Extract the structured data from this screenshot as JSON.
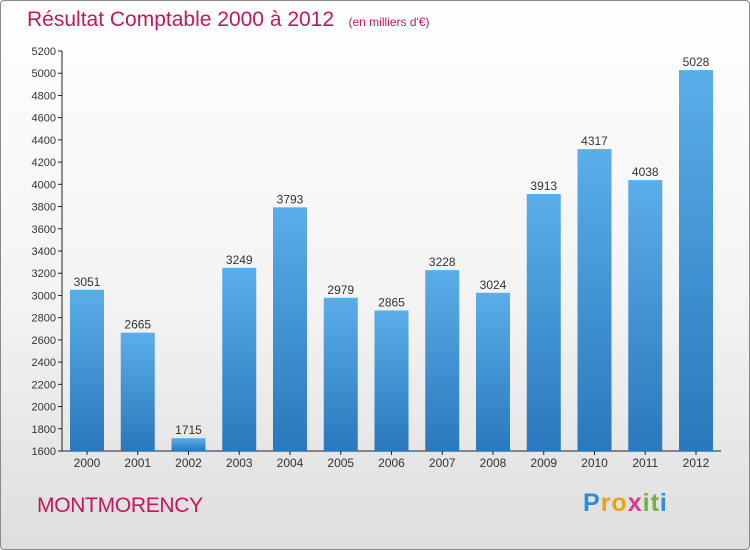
{
  "header": {
    "title": "Résultat Comptable 2000 à 2012",
    "subtitle": "(en milliers d'€)"
  },
  "footer": {
    "town": "MONTMORENCY",
    "logo": {
      "letters": [
        "P",
        "r",
        "o",
        "x",
        "i",
        "t",
        "i"
      ],
      "colors": [
        "#2e8bd8",
        "#e8a317",
        "#e8a317",
        "#d93a8c",
        "#6cb33f",
        "#6cb33f",
        "#2e8bd8"
      ]
    }
  },
  "colors": {
    "bar_light": "#5aaee8",
    "bar_dark": "#2a78bd",
    "title": "#c2185b",
    "text": "#333333"
  },
  "chart_data": {
    "type": "bar",
    "title": "Résultat Comptable 2000 à 2012",
    "subtitle": "(en milliers d'€)",
    "categories": [
      "2000",
      "2001",
      "2002",
      "2003",
      "2004",
      "2005",
      "2006",
      "2007",
      "2008",
      "2009",
      "2010",
      "2011",
      "2012"
    ],
    "values": [
      3051,
      2665,
      1715,
      3249,
      3793,
      2979,
      2865,
      3228,
      3024,
      3913,
      4317,
      4038,
      5028
    ],
    "data_labels": [
      "3051",
      "2665",
      "1715",
      "3249",
      "3793",
      "2979",
      "2865",
      "3228",
      "3024",
      "3913",
      "4317",
      "4038",
      "5028"
    ],
    "yticks": [
      "1600",
      "1800",
      "2000",
      "2200",
      "2400",
      "2600",
      "2800",
      "3000",
      "3200",
      "3400",
      "3600",
      "3800",
      "4000",
      "4200",
      "4400",
      "4600",
      "4800",
      "5000",
      "5200"
    ],
    "ylim": [
      1600,
      5200
    ],
    "grid": false,
    "legend": "none"
  }
}
